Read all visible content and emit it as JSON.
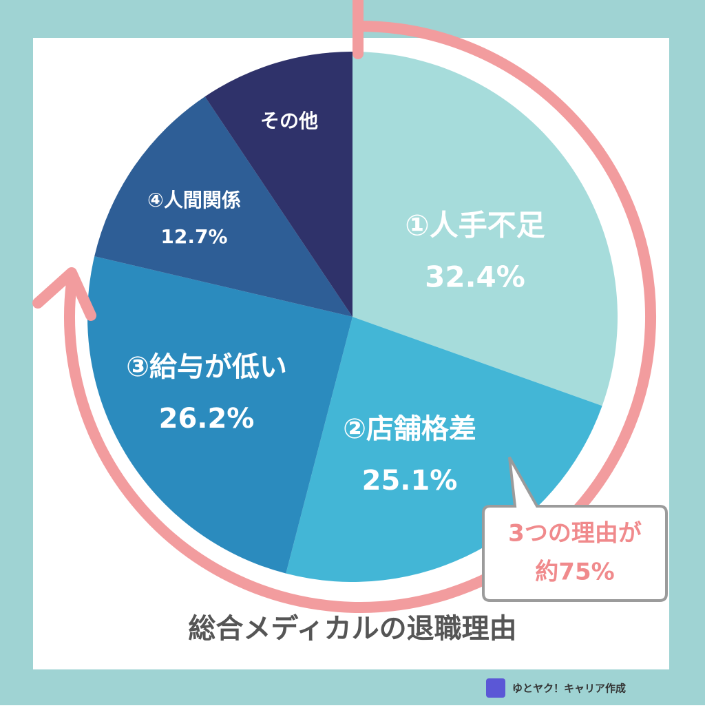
{
  "chart_data": {
    "type": "pie",
    "title": "総合メディカルの退職理由",
    "categories": [
      "①人手不足",
      "②店舗格差",
      "③給与が低い",
      "④人間関係",
      "その他"
    ],
    "values": [
      32.4,
      25.1,
      26.2,
      12.7,
      10
    ],
    "value_labels": [
      "32.4%",
      "25.1%",
      "26.2%",
      "12.7%",
      null
    ],
    "colors": [
      "#a6dcdb",
      "#43b6d6",
      "#2b8bbe",
      "#2e5e96",
      "#2f326a"
    ],
    "callout": [
      "3つの理由が",
      "約75%"
    ],
    "credit": "ゆとヤク！キャリア作成"
  }
}
